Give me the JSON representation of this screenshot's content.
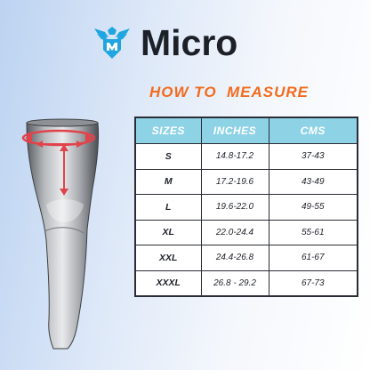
{
  "brand": {
    "name": "Micro",
    "logo_icon": "eagle-shield-logo",
    "logo_color": "#1fa6e0"
  },
  "heading": "HOW TO  MEASURE",
  "heading_color": "#f26b1d",
  "illustration": {
    "icon": "knee-sleeve-diagram",
    "arrow_color": "#e2434b"
  },
  "table": {
    "header_color": "#8ed2e6",
    "headers": [
      "SIZES",
      "INCHES",
      "CMS"
    ],
    "rows": [
      [
        "S",
        "14.8-17.2",
        "37-43"
      ],
      [
        "M",
        "17.2-19.6",
        "43-49"
      ],
      [
        "L",
        "19.6-22.0",
        "49-55"
      ],
      [
        "XL",
        "22.0-24.4",
        "55-61"
      ],
      [
        "XXL",
        "24.4-26.8",
        "61-67"
      ],
      [
        "XXXL",
        "26.8 - 29.2",
        "67-73"
      ]
    ]
  }
}
